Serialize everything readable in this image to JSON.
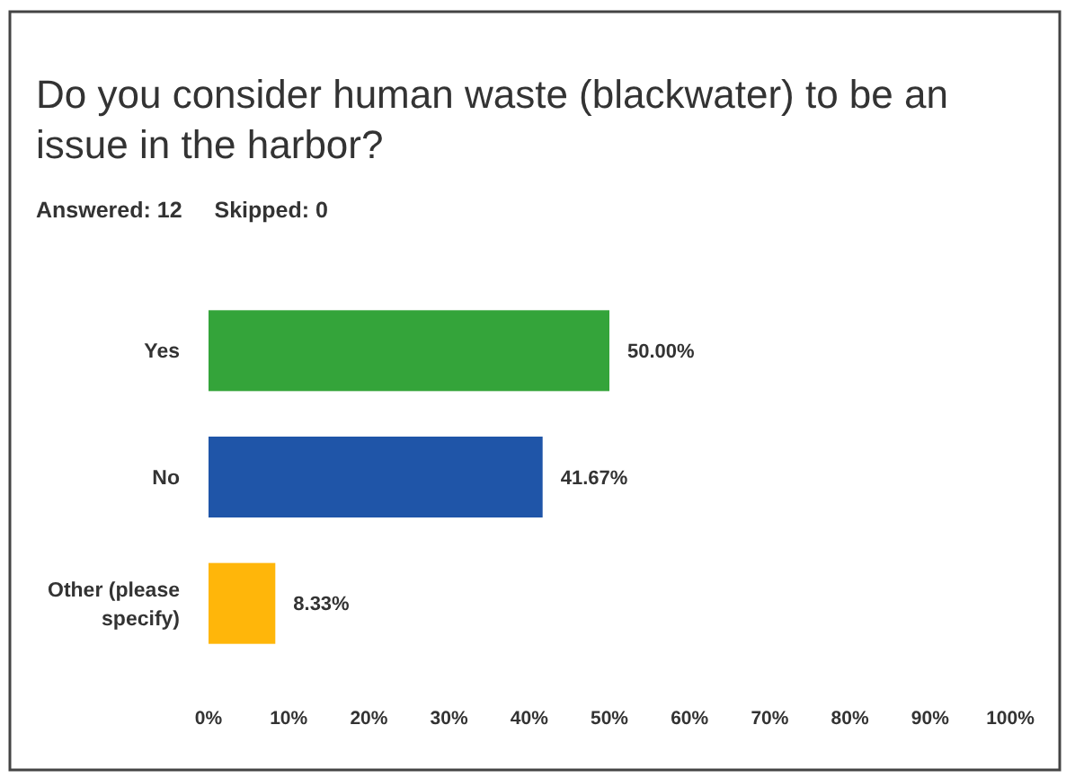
{
  "chart_data": {
    "type": "bar",
    "orientation": "horizontal",
    "title": "Do you consider human waste (blackwater) to be an issue in the harbor?",
    "annotations": [
      "Answered: 12",
      "Skipped: 0"
    ],
    "categories": [
      "Yes",
      "No",
      "Other (please specify)"
    ],
    "values": [
      50.0,
      41.67,
      8.33
    ],
    "colors": [
      "#34a43a",
      "#1f55a8",
      "#ffb60a"
    ],
    "value_labels": [
      "50.00%",
      "41.67%",
      "8.33%"
    ],
    "xlim": [
      0,
      100
    ],
    "xticks": [
      {
        "value": 0,
        "label": "0%"
      },
      {
        "value": 10,
        "label": "10%"
      },
      {
        "value": 20,
        "label": "20%"
      },
      {
        "value": 30,
        "label": "30%"
      },
      {
        "value": 40,
        "label": "40%"
      },
      {
        "value": 50,
        "label": "50%"
      },
      {
        "value": 60,
        "label": "60%"
      },
      {
        "value": 70,
        "label": "70%"
      },
      {
        "value": 80,
        "label": "80%"
      },
      {
        "value": 90,
        "label": "90%"
      },
      {
        "value": 100,
        "label": "100%"
      }
    ]
  }
}
